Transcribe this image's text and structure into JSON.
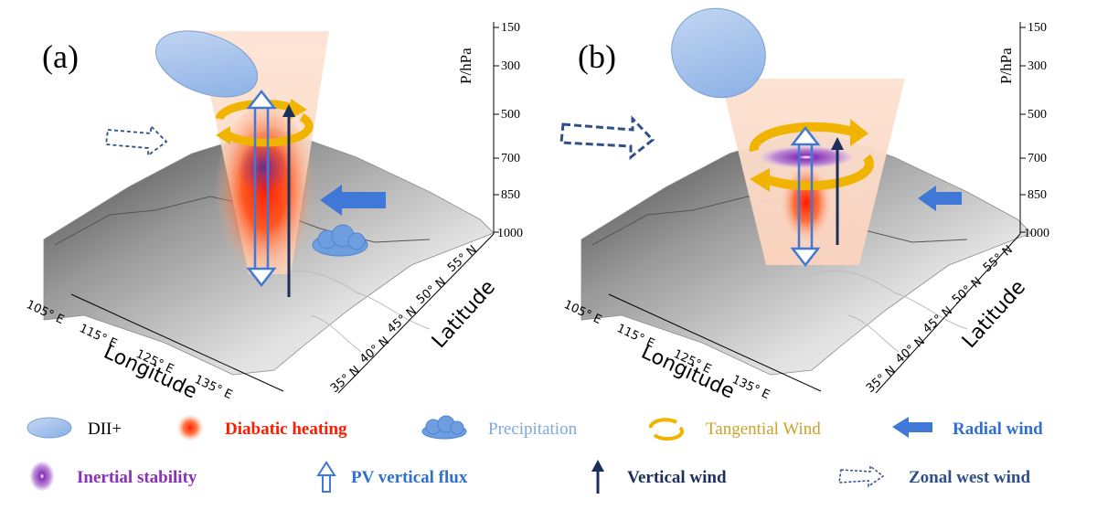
{
  "panels": [
    {
      "label": "(a)"
    },
    {
      "label": "(b)"
    }
  ],
  "axes": {
    "pressure_title": "P/hPa",
    "pressure_ticks": [
      "150",
      "300",
      "500",
      "700",
      "850",
      "1000"
    ],
    "longitude_title": "Longitude",
    "longitude_ticks": [
      "105° E",
      "115° E",
      "125° E",
      "135° E"
    ],
    "latitude_title": "Latitude",
    "latitude_ticks": [
      "55° N",
      "50° N",
      "45° N",
      "40° N",
      "35° N"
    ]
  },
  "legend": {
    "dii": {
      "label": "DII+",
      "color": "#000000"
    },
    "diabatic": {
      "label": "Diabatic heating",
      "color": "#ff1a00"
    },
    "precip": {
      "label": "Precipitation",
      "color": "#7fa7dc"
    },
    "tangential": {
      "label": "Tangential Wind",
      "color": "#c9a227"
    },
    "radial": {
      "label": "Radial wind",
      "color": "#2f6fcf"
    },
    "inertial": {
      "label": "Inertial stability",
      "color": "#8a2fb8"
    },
    "pvflux": {
      "label": "PV vertical flux",
      "color": "#2f6fcf"
    },
    "vertical": {
      "label": "Vertical wind",
      "color": "#1c2f5a"
    },
    "zonal": {
      "label": "Zonal west wind",
      "color": "#2f4f8a"
    }
  }
}
